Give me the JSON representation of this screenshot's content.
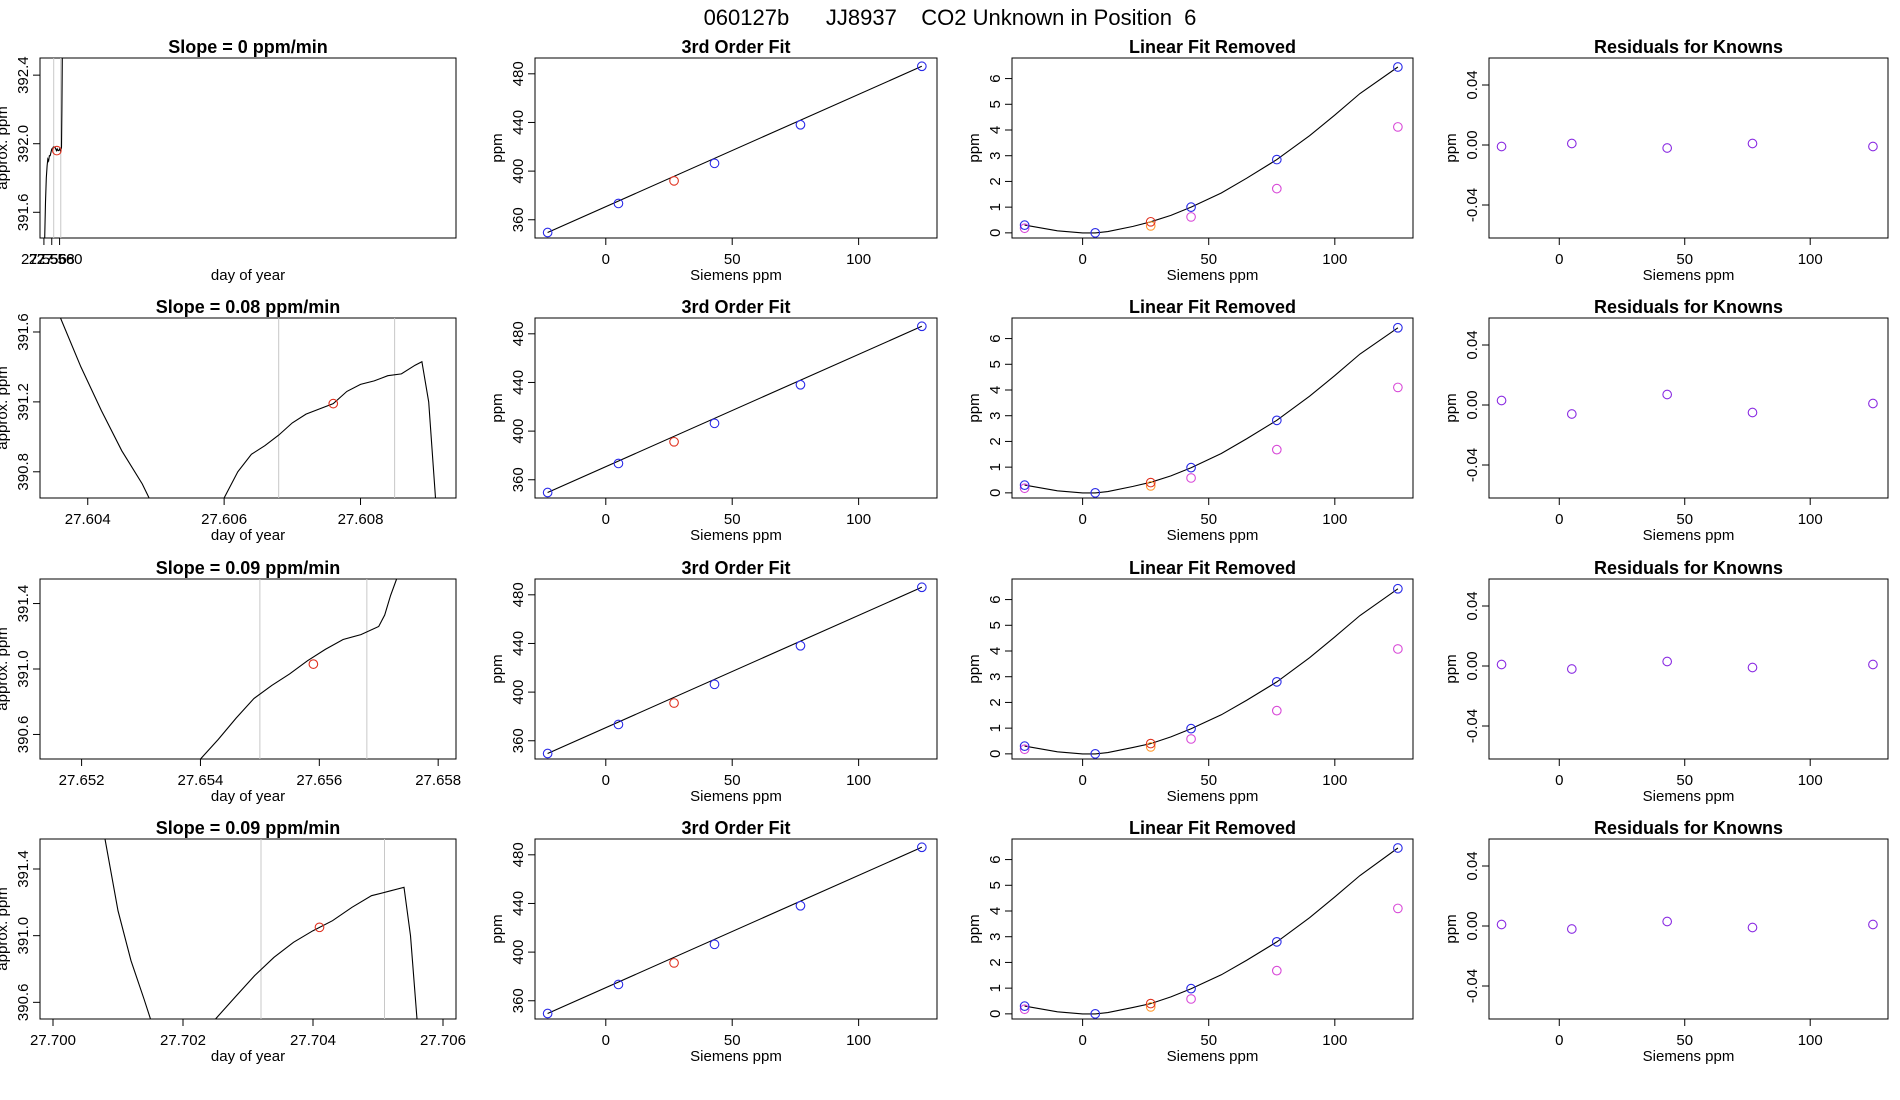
{
  "figure_title": "060127b      JJ8937    CO2 Unknown in Position  6",
  "colors": {
    "frame": "#000000",
    "curve": "#000000",
    "marker_lines": "#c8c8c8",
    "unknown_point": "#e0301e",
    "known_points": "#2a2ae8",
    "unknown_fit_point": "#e0301e",
    "orange_points": "#ff9a2e",
    "magenta_points": "#d84ad8",
    "residual_points": "#8a2be2"
  },
  "chart_data": [
    {
      "type": "line",
      "row": 1,
      "col": 1,
      "title": "Slope =  0  ppm/min",
      "xlabel": "day of year",
      "ylabel": "approx. ppm",
      "xlim": [
        27.555,
        27.6612
      ],
      "ylim": [
        391.45,
        392.5
      ],
      "xticks": [
        27.556,
        27.558,
        27.56
      ],
      "yticks": [
        391.6,
        392.0,
        392.4
      ],
      "marker_lines_x": [
        27.5585,
        27.5603
      ],
      "trace": {
        "x": [
          27.5562,
          27.5564,
          27.5566,
          27.5568,
          27.557,
          27.5572,
          27.5574,
          27.5576,
          27.5578,
          27.558,
          27.5582,
          27.5584,
          27.5586,
          27.5588,
          27.559,
          27.5592,
          27.5594,
          27.5596,
          27.5598,
          27.56,
          27.5602,
          27.5603,
          27.5604,
          27.5605,
          27.5606,
          27.5607
        ],
        "y": [
          391.45,
          391.66,
          391.8,
          391.87,
          391.91,
          391.9,
          391.93,
          391.93,
          391.95,
          391.97,
          391.97,
          391.98,
          391.98,
          391.98,
          391.97,
          391.96,
          391.97,
          391.96,
          391.96,
          391.97,
          391.96,
          391.97,
          391.97,
          391.98,
          392.2,
          392.5
        ]
      },
      "unknown_point": {
        "x": 27.5593,
        "y": 391.96
      }
    },
    {
      "type": "scatter",
      "row": 1,
      "col": 2,
      "title": "3rd Order Fit",
      "xlabel": "Siemens ppm",
      "ylabel": "ppm",
      "xlim": [
        -28,
        131
      ],
      "ylim": [
        345,
        493
      ],
      "xticks": [
        0,
        50,
        100
      ],
      "yticks": [
        360,
        400,
        440,
        480
      ],
      "fit_curve": {
        "x": [
          -23,
          125
        ],
        "y": [
          349.5,
          486.2
        ]
      },
      "knowns": {
        "x": [
          -23,
          5,
          43,
          77,
          125
        ],
        "y": [
          349.5,
          373.4,
          406.4,
          438.1,
          486.2
        ]
      },
      "unknown": {
        "x": 27,
        "y": 392.0
      }
    },
    {
      "type": "scatter",
      "row": 1,
      "col": 3,
      "title": "Linear Fit Removed",
      "xlabel": "Siemens ppm",
      "ylabel": "ppm",
      "xlim": [
        -28,
        131
      ],
      "ylim": [
        -0.2,
        6.8
      ],
      "xticks": [
        0,
        50,
        100
      ],
      "yticks": [
        0,
        1,
        2,
        3,
        4,
        5,
        6
      ],
      "fit_curve": {
        "x": [
          -23,
          -10,
          0,
          5,
          10,
          20,
          27,
          35,
          43,
          55,
          65,
          77,
          90,
          100,
          110,
          125
        ],
        "y": [
          0.3,
          0.08,
          0.0,
          0.0,
          0.05,
          0.25,
          0.43,
          0.68,
          1.0,
          1.55,
          2.12,
          2.85,
          3.78,
          4.58,
          5.42,
          6.45
        ]
      },
      "knowns": {
        "x": [
          -23,
          5,
          43,
          77,
          125
        ],
        "y": [
          0.3,
          0.0,
          1.0,
          2.85,
          6.45
        ]
      },
      "unknown": {
        "x": 27,
        "y": 0.43
      },
      "orange": {
        "x": [
          27
        ],
        "y": [
          0.27
        ]
      },
      "magenta": {
        "x": [
          -23,
          43,
          77,
          125
        ],
        "y": [
          0.18,
          0.62,
          1.72,
          4.12
        ]
      }
    },
    {
      "type": "scatter",
      "row": 1,
      "col": 4,
      "title": "Residuals for Knowns",
      "xlabel": "Siemens ppm",
      "ylabel": "ppm",
      "xlim": [
        -28,
        131
      ],
      "ylim": [
        -0.062,
        0.058
      ],
      "xticks": [
        0,
        50,
        100
      ],
      "yticks": [
        -0.04,
        0.0,
        0.04
      ],
      "ytick_labels": [
        "-0.04",
        "0.00",
        "0.04"
      ],
      "points": {
        "x": [
          -23,
          5,
          43,
          77,
          125
        ],
        "y": [
          -0.001,
          0.001,
          -0.002,
          0.001,
          -0.001
        ]
      }
    },
    {
      "type": "line",
      "row": 2,
      "col": 1,
      "title": "Slope =  0.08  ppm/min",
      "xlabel": "day of year",
      "ylabel": "approx. ppm",
      "xlim": [
        27.6033,
        27.6094
      ],
      "ylim": [
        390.65,
        391.68
      ],
      "xticks": [
        27.604,
        27.606,
        27.608
      ],
      "yticks": [
        390.8,
        391.2,
        391.6
      ],
      "marker_lines_x": [
        27.6068,
        27.6085
      ],
      "trace": {
        "x": [
          27.6036,
          27.6039,
          27.6042,
          27.6045,
          27.6048,
          27.6049,
          27.606,
          27.6062,
          27.6064,
          27.6066,
          27.6068,
          27.607,
          27.6072,
          27.6074,
          27.6076,
          27.6078,
          27.608,
          27.6082,
          27.6084,
          27.6086,
          27.6088,
          27.6089,
          27.609,
          27.6091
        ],
        "y": [
          391.68,
          391.4,
          391.15,
          390.92,
          390.73,
          390.65,
          390.65,
          390.8,
          390.9,
          390.95,
          391.01,
          391.08,
          391.13,
          391.16,
          391.19,
          391.26,
          391.3,
          391.32,
          391.35,
          391.36,
          391.41,
          391.43,
          391.2,
          390.65
        ]
      },
      "unknown_point": {
        "x": 27.6076,
        "y": 391.19
      }
    },
    {
      "type": "scatter",
      "row": 2,
      "col": 2,
      "title": "3rd Order Fit",
      "xlabel": "Siemens ppm",
      "ylabel": "ppm",
      "xlim": [
        -28,
        131
      ],
      "ylim": [
        345,
        493
      ],
      "xticks": [
        0,
        50,
        100
      ],
      "yticks": [
        360,
        400,
        440,
        480
      ],
      "fit_curve": {
        "x": [
          -23,
          125
        ],
        "y": [
          349.5,
          486.2
        ]
      },
      "knowns": {
        "x": [
          -23,
          5,
          43,
          77,
          125
        ],
        "y": [
          349.5,
          373.4,
          406.4,
          438.1,
          486.2
        ]
      },
      "unknown": {
        "x": 27,
        "y": 391.2
      }
    },
    {
      "type": "scatter",
      "row": 2,
      "col": 3,
      "title": "Linear Fit Removed",
      "xlabel": "Siemens ppm",
      "ylabel": "ppm",
      "xlim": [
        -28,
        131
      ],
      "ylim": [
        -0.2,
        6.8
      ],
      "xticks": [
        0,
        50,
        100
      ],
      "yticks": [
        0,
        1,
        2,
        3,
        4,
        5,
        6
      ],
      "fit_curve": {
        "x": [
          -23,
          -10,
          0,
          5,
          10,
          20,
          27,
          35,
          43,
          55,
          65,
          77,
          90,
          100,
          110,
          125
        ],
        "y": [
          0.3,
          0.08,
          0.0,
          0.0,
          0.05,
          0.25,
          0.41,
          0.66,
          0.98,
          1.53,
          2.1,
          2.82,
          3.76,
          4.56,
          5.4,
          6.42
        ]
      },
      "knowns": {
        "x": [
          -23,
          5,
          43,
          77,
          125
        ],
        "y": [
          0.3,
          0.0,
          0.98,
          2.82,
          6.42
        ]
      },
      "unknown": {
        "x": 27,
        "y": 0.4
      },
      "orange": {
        "x": [
          27
        ],
        "y": [
          0.27
        ]
      },
      "magenta": {
        "x": [
          -23,
          43,
          77,
          125
        ],
        "y": [
          0.18,
          0.58,
          1.68,
          4.1
        ]
      }
    },
    {
      "type": "scatter",
      "row": 2,
      "col": 4,
      "title": "Residuals for Knowns",
      "xlabel": "Siemens ppm",
      "ylabel": "ppm",
      "xlim": [
        -28,
        131
      ],
      "ylim": [
        -0.062,
        0.058
      ],
      "xticks": [
        0,
        50,
        100
      ],
      "yticks": [
        -0.04,
        0.0,
        0.04
      ],
      "ytick_labels": [
        "-0.04",
        "0.00",
        "0.04"
      ],
      "points": {
        "x": [
          -23,
          5,
          43,
          77,
          125
        ],
        "y": [
          0.003,
          -0.006,
          0.007,
          -0.005,
          0.001
        ]
      }
    },
    {
      "type": "line",
      "row": 3,
      "col": 1,
      "title": "Slope =  0.09  ppm/min",
      "xlabel": "day of year",
      "ylabel": "approx. ppm",
      "xlim": [
        27.6513,
        27.6583
      ],
      "ylim": [
        390.45,
        391.55
      ],
      "xticks": [
        27.652,
        27.654,
        27.656,
        27.658
      ],
      "yticks": [
        390.6,
        391.0,
        391.4
      ],
      "marker_lines_x": [
        27.655,
        27.6568
      ],
      "trace": {
        "x": [
          27.654,
          27.6543,
          27.6546,
          27.6549,
          27.6552,
          27.6555,
          27.6558,
          27.6561,
          27.6564,
          27.6567,
          27.657,
          27.6571,
          27.6572,
          27.6573
        ],
        "y": [
          390.45,
          390.57,
          390.7,
          390.82,
          390.9,
          390.97,
          391.05,
          391.12,
          391.18,
          391.21,
          391.26,
          391.33,
          391.45,
          391.55
        ]
      },
      "unknown_point": {
        "x": 27.6559,
        "y": 391.03
      }
    },
    {
      "type": "scatter",
      "row": 3,
      "col": 2,
      "title": "3rd Order Fit",
      "xlabel": "Siemens ppm",
      "ylabel": "ppm",
      "xlim": [
        -28,
        131
      ],
      "ylim": [
        345,
        493
      ],
      "xticks": [
        0,
        50,
        100
      ],
      "yticks": [
        360,
        400,
        440,
        480
      ],
      "fit_curve": {
        "x": [
          -23,
          125
        ],
        "y": [
          349.5,
          486.2
        ]
      },
      "knowns": {
        "x": [
          -23,
          5,
          43,
          77,
          125
        ],
        "y": [
          349.5,
          373.4,
          406.4,
          438.1,
          486.2
        ]
      },
      "unknown": {
        "x": 27,
        "y": 391.0
      }
    },
    {
      "type": "scatter",
      "row": 3,
      "col": 3,
      "title": "Linear Fit Removed",
      "xlabel": "Siemens ppm",
      "ylabel": "ppm",
      "xlim": [
        -28,
        131
      ],
      "ylim": [
        -0.2,
        6.8
      ],
      "xticks": [
        0,
        50,
        100
      ],
      "yticks": [
        0,
        1,
        2,
        3,
        4,
        5,
        6
      ],
      "fit_curve": {
        "x": [
          -23,
          -10,
          0,
          5,
          10,
          20,
          27,
          35,
          43,
          55,
          65,
          77,
          90,
          100,
          110,
          125
        ],
        "y": [
          0.3,
          0.08,
          0.0,
          0.0,
          0.05,
          0.25,
          0.4,
          0.66,
          0.98,
          1.52,
          2.08,
          2.8,
          3.74,
          4.55,
          5.38,
          6.42
        ]
      },
      "knowns": {
        "x": [
          -23,
          5,
          43,
          77,
          125
        ],
        "y": [
          0.3,
          0.0,
          0.98,
          2.8,
          6.42
        ]
      },
      "unknown": {
        "x": 27,
        "y": 0.4
      },
      "orange": {
        "x": [
          27
        ],
        "y": [
          0.27
        ]
      },
      "magenta": {
        "x": [
          -23,
          43,
          77,
          125
        ],
        "y": [
          0.18,
          0.58,
          1.68,
          4.08
        ]
      }
    },
    {
      "type": "scatter",
      "row": 3,
      "col": 4,
      "title": "Residuals for Knowns",
      "xlabel": "Siemens ppm",
      "ylabel": "ppm",
      "xlim": [
        -28,
        131
      ],
      "ylim": [
        -0.062,
        0.058
      ],
      "xticks": [
        0,
        50,
        100
      ],
      "yticks": [
        -0.04,
        0.0,
        0.04
      ],
      "ytick_labels": [
        "-0.04",
        "0.00",
        "0.04"
      ],
      "points": {
        "x": [
          -23,
          5,
          43,
          77,
          125
        ],
        "y": [
          0.001,
          -0.002,
          0.003,
          -0.001,
          0.001
        ]
      }
    },
    {
      "type": "line",
      "row": 4,
      "col": 1,
      "title": "Slope =  0.09  ppm/min",
      "xlabel": "day of year",
      "ylabel": "approx. ppm",
      "xlim": [
        27.6998,
        27.7062
      ],
      "ylim": [
        390.5,
        391.58
      ],
      "xticks": [
        27.7,
        27.702,
        27.704,
        27.706
      ],
      "yticks": [
        390.6,
        391.0,
        391.4
      ],
      "marker_lines_x": [
        27.7032,
        27.7051
      ],
      "trace": {
        "x": [
          27.7008,
          27.701,
          27.7012,
          27.7014,
          27.7015,
          27.7025,
          27.7028,
          27.7031,
          27.7034,
          27.7037,
          27.704,
          27.7043,
          27.7046,
          27.7049,
          27.7052,
          27.7054,
          27.7055,
          27.7056
        ],
        "y": [
          391.58,
          391.15,
          390.85,
          390.62,
          390.5,
          390.5,
          390.63,
          390.76,
          390.87,
          390.96,
          391.03,
          391.09,
          391.17,
          391.24,
          391.27,
          391.29,
          391.0,
          390.5
        ]
      },
      "unknown_point": {
        "x": 27.7041,
        "y": 391.05
      }
    },
    {
      "type": "scatter",
      "row": 4,
      "col": 2,
      "title": "3rd Order Fit",
      "xlabel": "Siemens ppm",
      "ylabel": "ppm",
      "xlim": [
        -28,
        131
      ],
      "ylim": [
        345,
        493
      ],
      "xticks": [
        0,
        50,
        100
      ],
      "yticks": [
        360,
        400,
        440,
        480
      ],
      "fit_curve": {
        "x": [
          -23,
          125
        ],
        "y": [
          349.5,
          486.2
        ]
      },
      "knowns": {
        "x": [
          -23,
          5,
          43,
          77,
          125
        ],
        "y": [
          349.5,
          373.4,
          406.4,
          438.1,
          486.2
        ]
      },
      "unknown": {
        "x": 27,
        "y": 391.1
      }
    },
    {
      "type": "scatter",
      "row": 4,
      "col": 3,
      "title": "Linear Fit Removed",
      "xlabel": "Siemens ppm",
      "ylabel": "ppm",
      "xlim": [
        -28,
        131
      ],
      "ylim": [
        -0.2,
        6.8
      ],
      "xticks": [
        0,
        50,
        100
      ],
      "yticks": [
        0,
        1,
        2,
        3,
        4,
        5,
        6
      ],
      "fit_curve": {
        "x": [
          -23,
          -10,
          0,
          5,
          10,
          20,
          27,
          35,
          43,
          55,
          65,
          77,
          90,
          100,
          110,
          125
        ],
        "y": [
          0.3,
          0.08,
          0.0,
          0.0,
          0.05,
          0.25,
          0.4,
          0.66,
          0.98,
          1.52,
          2.08,
          2.8,
          3.74,
          4.55,
          5.38,
          6.45
        ]
      },
      "knowns": {
        "x": [
          -23,
          5,
          43,
          77,
          125
        ],
        "y": [
          0.3,
          0.0,
          0.98,
          2.8,
          6.45
        ]
      },
      "unknown": {
        "x": 27,
        "y": 0.4
      },
      "orange": {
        "x": [
          27
        ],
        "y": [
          0.27
        ]
      },
      "magenta": {
        "x": [
          -23,
          43,
          77,
          125
        ],
        "y": [
          0.18,
          0.58,
          1.68,
          4.1
        ]
      }
    },
    {
      "type": "scatter",
      "row": 4,
      "col": 4,
      "title": "Residuals for Knowns",
      "xlabel": "Siemens ppm",
      "ylabel": "ppm",
      "xlim": [
        -28,
        131
      ],
      "ylim": [
        -0.062,
        0.058
      ],
      "xticks": [
        0,
        50,
        100
      ],
      "yticks": [
        -0.04,
        0.0,
        0.04
      ],
      "ytick_labels": [
        "-0.04",
        "0.00",
        "0.04"
      ],
      "points": {
        "x": [
          -23,
          5,
          43,
          77,
          125
        ],
        "y": [
          0.001,
          -0.002,
          0.003,
          -0.001,
          0.001
        ]
      }
    }
  ]
}
